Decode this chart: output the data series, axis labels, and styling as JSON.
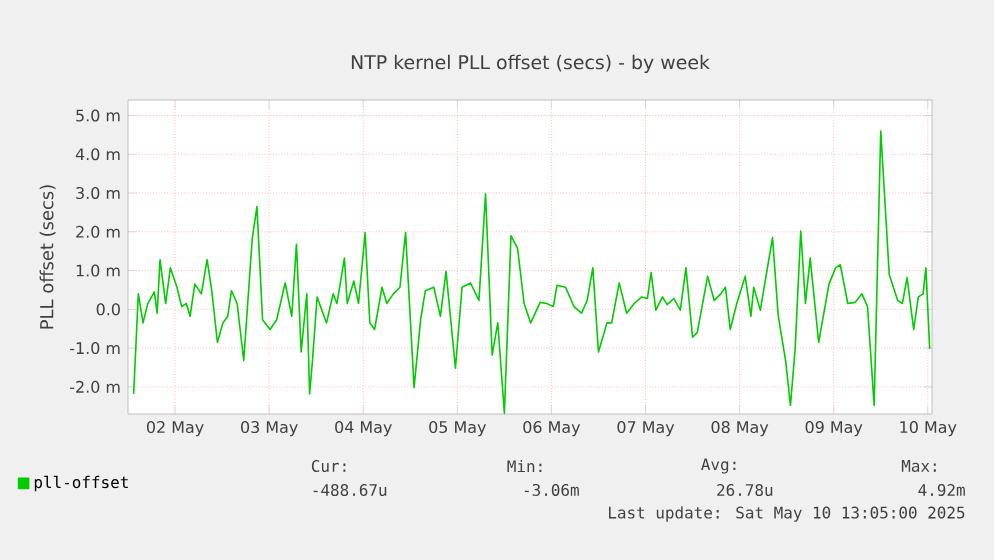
{
  "chart_data": {
    "type": "line",
    "title": "NTP kernel PLL offset (secs) - by week",
    "ylabel": "PLL offset (secs)",
    "xlim": [
      "2025-05-02T00:00",
      "2025-05-10T13:05"
    ],
    "ylim": [
      -2.7,
      5.4
    ],
    "xticks": [
      {
        "value": "2025-05-02T12:00",
        "label": "02 May"
      },
      {
        "value": "2025-05-03T12:00",
        "label": "03 May"
      },
      {
        "value": "2025-05-04T12:00",
        "label": "04 May"
      },
      {
        "value": "2025-05-05T12:00",
        "label": "05 May"
      },
      {
        "value": "2025-05-06T12:00",
        "label": "06 May"
      },
      {
        "value": "2025-05-07T12:00",
        "label": "07 May"
      },
      {
        "value": "2025-05-08T12:00",
        "label": "08 May"
      },
      {
        "value": "2025-05-09T12:00",
        "label": "09 May"
      },
      {
        "value": "2025-05-10T12:00",
        "label": "10 May"
      }
    ],
    "yticks": [
      {
        "value": -2,
        "label": "-2.0 m"
      },
      {
        "value": -1,
        "label": "-1.0 m"
      },
      {
        "value": 0,
        "label": "0.0"
      },
      {
        "value": 1,
        "label": "1.0 m"
      },
      {
        "value": 2,
        "label": "2.0 m"
      },
      {
        "value": 3,
        "label": "3.0 m"
      },
      {
        "value": 4,
        "label": "4.0 m"
      },
      {
        "value": 5,
        "label": "5.0 m"
      }
    ],
    "grid": true,
    "legend": "bottom left",
    "series": [
      {
        "name": "pll-offset",
        "color": "#00cc00",
        "x": [
          "2025-05-02T01:26",
          "2025-05-02T02:38",
          "2025-05-02T03:50",
          "2025-05-02T05:02",
          "2025-05-02T06:43",
          "2025-05-02T07:26",
          "2025-05-02T08:10",
          "2025-05-02T09:36",
          "2025-05-02T10:48",
          "2025-05-02T12:29",
          "2025-05-02T13:41",
          "2025-05-02T14:53",
          "2025-05-02T15:50",
          "2025-05-02T17:02",
          "2025-05-02T18:43",
          "2025-05-02T20:10",
          "2025-05-02T21:22",
          "2025-05-02T22:48",
          "2025-05-03T00:14",
          "2025-05-03T01:26",
          "2025-05-03T02:24",
          "2025-05-03T03:50",
          "2025-05-03T05:31",
          "2025-05-03T07:41",
          "2025-05-03T08:53",
          "2025-05-03T10:19",
          "2025-05-03T12:14",
          "2025-05-03T13:55",
          "2025-05-03T14:53",
          "2025-05-03T16:05",
          "2025-05-03T17:46",
          "2025-05-03T18:58",
          "2025-05-03T20:10",
          "2025-05-03T21:36",
          "2025-05-03T22:19",
          "2025-05-03T23:02",
          "2025-05-04T00:14",
          "2025-05-04T02:38",
          "2025-05-04T04:19",
          "2025-05-04T05:17",
          "2025-05-04T07:12",
          "2025-05-04T07:55",
          "2025-05-04T09:36",
          "2025-05-04T10:48",
          "2025-05-04T12:29",
          "2025-05-04T13:41",
          "2025-05-04T14:53",
          "2025-05-04T16:48",
          "2025-05-04T18:00",
          "2025-05-04T19:41",
          "2025-05-04T21:22",
          "2025-05-04T22:48",
          "2025-05-05T00:58",
          "2025-05-05T02:38",
          "2025-05-05T03:50",
          "2025-05-05T06:00",
          "2025-05-05T07:41",
          "2025-05-05T09:07",
          "2025-05-05T11:31",
          "2025-05-05T13:12",
          "2025-05-05T15:22",
          "2025-05-05T17:31",
          "2025-05-05T19:12",
          "2025-05-05T20:53",
          "2025-05-05T22:19",
          "2025-05-06T00:00",
          "2025-05-06T01:41",
          "2025-05-06T03:22",
          "2025-05-06T05:02",
          "2025-05-06T06:43",
          "2025-05-06T09:07",
          "2025-05-06T10:48",
          "2025-05-06T12:29",
          "2025-05-06T13:26",
          "2025-05-06T15:36",
          "2025-05-06T17:46",
          "2025-05-06T19:41",
          "2025-05-06T21:07",
          "2025-05-06T22:34",
          "2025-05-07T00:00",
          "2025-05-07T02:10",
          "2025-05-07T03:22",
          "2025-05-07T05:17",
          "2025-05-07T07:12",
          "2025-05-07T09:07",
          "2025-05-07T11:02",
          "2025-05-07T12:29",
          "2025-05-07T13:26",
          "2025-05-07T14:38",
          "2025-05-07T16:19",
          "2025-05-07T17:31",
          "2025-05-07T19:12",
          "2025-05-07T20:53",
          "2025-05-07T22:19",
          "2025-05-08T00:00",
          "2025-05-08T01:12",
          "2025-05-08T03:50",
          "2025-05-08T05:31",
          "2025-05-08T07:12",
          "2025-05-08T08:24",
          "2025-05-08T09:36",
          "2025-05-08T11:17",
          "2025-05-08T13:26",
          "2025-05-08T14:53",
          "2025-05-08T15:36",
          "2025-05-08T17:17",
          "2025-05-08T20:24",
          "2025-05-08T21:50",
          "2025-05-08T23:46",
          "2025-05-09T00:58",
          "2025-05-09T02:10",
          "2025-05-09T03:36",
          "2025-05-09T04:48",
          "2025-05-09T06:00",
          "2025-05-09T08:10",
          "2025-05-09T10:48",
          "2025-05-09T12:29",
          "2025-05-09T13:41",
          "2025-05-09T15:36",
          "2025-05-09T17:31",
          "2025-05-09T19:12",
          "2025-05-09T20:38",
          "2025-05-09T22:19",
          "2025-05-10T00:00",
          "2025-05-10T02:10",
          "2025-05-10T04:19",
          "2025-05-10T05:31",
          "2025-05-10T06:43",
          "2025-05-10T08:24",
          "2025-05-10T09:36",
          "2025-05-10T10:48",
          "2025-05-10T11:31",
          "2025-05-10T12:29"
        ],
        "values": [
          -2.18,
          0.4,
          -0.35,
          0.15,
          0.45,
          -0.1,
          1.28,
          0.15,
          1.07,
          0.57,
          0.07,
          0.15,
          -0.18,
          0.65,
          0.4,
          1.28,
          0.48,
          -0.85,
          -0.35,
          -0.18,
          0.48,
          0.15,
          -1.32,
          1.82,
          2.65,
          -0.27,
          -0.52,
          -0.27,
          0.15,
          0.68,
          -0.18,
          1.68,
          -1.1,
          0.4,
          -2.18,
          -1.35,
          0.32,
          -0.35,
          0.4,
          0.15,
          1.32,
          0.15,
          0.73,
          0.15,
          1.98,
          -0.35,
          -0.52,
          0.57,
          0.15,
          0.4,
          0.57,
          1.98,
          -2.02,
          -0.27,
          0.48,
          0.57,
          -0.18,
          0.98,
          -1.52,
          0.57,
          0.68,
          0.23,
          2.98,
          -1.18,
          -0.35,
          -2.68,
          1.9,
          1.57,
          0.15,
          -0.35,
          0.18,
          0.15,
          0.07,
          0.62,
          0.57,
          0.07,
          -0.1,
          0.23,
          1.07,
          -1.1,
          -0.35,
          -0.35,
          0.68,
          -0.1,
          0.15,
          0.32,
          0.28,
          0.95,
          -0.02,
          0.32,
          0.12,
          0.28,
          -0.02,
          1.07,
          -0.72,
          -0.6,
          0.85,
          0.23,
          0.4,
          0.57,
          -0.52,
          0.15,
          0.85,
          -0.18,
          0.57,
          -0.02,
          1.85,
          -0.15,
          -1.35,
          -2.48,
          -1.02,
          2.02,
          0.15,
          1.32,
          -0.85,
          0.65,
          1.07,
          1.15,
          0.15,
          0.18,
          0.4,
          0.07,
          -2.48,
          4.6,
          0.9,
          0.23,
          0.15,
          0.82,
          -0.52,
          0.32,
          0.4,
          1.07,
          -1.02
        ]
      }
    ],
    "annotations": [
      "Cur:",
      "Min:",
      "Avg:",
      "Max:",
      "-488.67u",
      "-3.06m",
      "26.78u",
      "4.92m",
      "Last update: Sat May 10 13:05:00 2025"
    ]
  }
}
